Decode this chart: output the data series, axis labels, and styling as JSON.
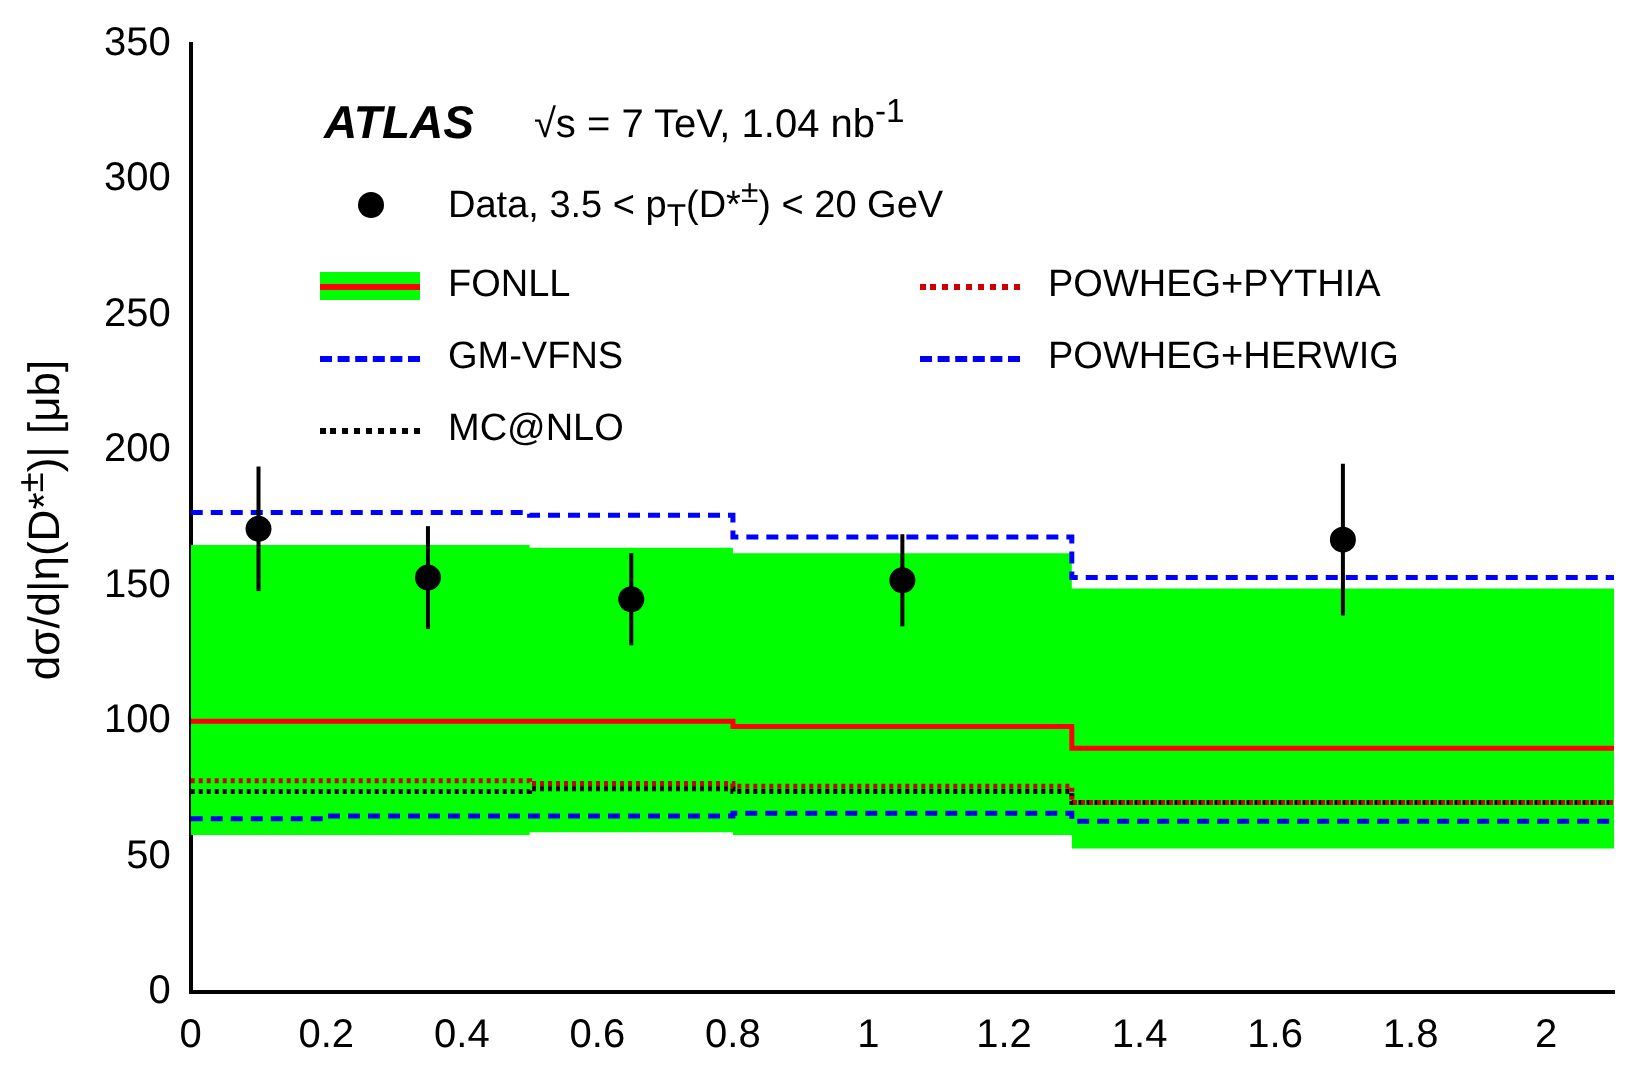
{
  "chart_data": {
    "type": "scatter",
    "ylabel": "dσ/d|η(D*$^{±}$)| [μb]",
    "annotations": [
      "ATLAS",
      "√s = 7 TeV, 1.04 nb$^{-1}$"
    ],
    "xlim": [
      0,
      2.1
    ],
    "ylim": [
      0,
      350
    ],
    "xticks": [
      0,
      0.2,
      0.4,
      0.6,
      0.8,
      1,
      1.2,
      1.4,
      1.6,
      1.8,
      2
    ],
    "yticks": [
      0,
      50,
      100,
      150,
      200,
      250,
      300,
      350
    ],
    "grid": false,
    "legend": "top left",
    "series": [
      {
        "name": "Data, 3.5 < p$_{T}$(D*$^{±}$) < 20 GeV",
        "color": "#000000",
        "marker": "circle",
        "x": [
          0.1,
          0.35,
          0.65,
          1.05,
          1.7
        ],
        "values": [
          171,
          153,
          145,
          152,
          167
        ],
        "errors": [
          23,
          19,
          17,
          17,
          28
        ]
      },
      {
        "name": "FONLL",
        "type": "step",
        "color": "#ff0000",
        "line_style": "solid",
        "x": [
          0,
          0.2,
          0.5,
          0.8,
          1.3,
          2.1
        ],
        "values": [
          100,
          100,
          100,
          98,
          90,
          90
        ],
        "lower": [
          58,
          58,
          59,
          58,
          53,
          53
        ],
        "upper": [
          165,
          165,
          164,
          162,
          149,
          149
        ]
      },
      {
        "name": "POWHEG+PYTHIA",
        "type": "step",
        "color": "#cc0000",
        "line_style": "dotted",
        "x": [
          0,
          0.2,
          0.5,
          0.8,
          1.3,
          2.1
        ],
        "values": [
          78,
          78,
          77,
          76,
          70,
          70
        ]
      },
      {
        "name": "GM-VFNS",
        "type": "step",
        "color": "#0000ff",
        "line_style": "dashed",
        "x": [
          0,
          0.2,
          0.5,
          0.8,
          1.3,
          2.1
        ],
        "values": [
          177,
          177,
          176,
          168,
          153,
          153
        ]
      },
      {
        "name": "POWHEG+HERWIG",
        "type": "step",
        "color": "#0000ee",
        "line_style": "dashed",
        "x": [
          0,
          0.2,
          0.5,
          0.8,
          1.3,
          2.1
        ],
        "values": [
          64,
          65,
          65,
          66,
          63,
          63
        ]
      },
      {
        "name": "MC@NLO",
        "type": "step",
        "color": "#000000",
        "line_style": "dotted",
        "x": [
          0,
          0.2,
          0.5,
          0.8,
          1.3,
          2.1
        ],
        "values": [
          74,
          74,
          75,
          74,
          70,
          70
        ]
      }
    ]
  }
}
